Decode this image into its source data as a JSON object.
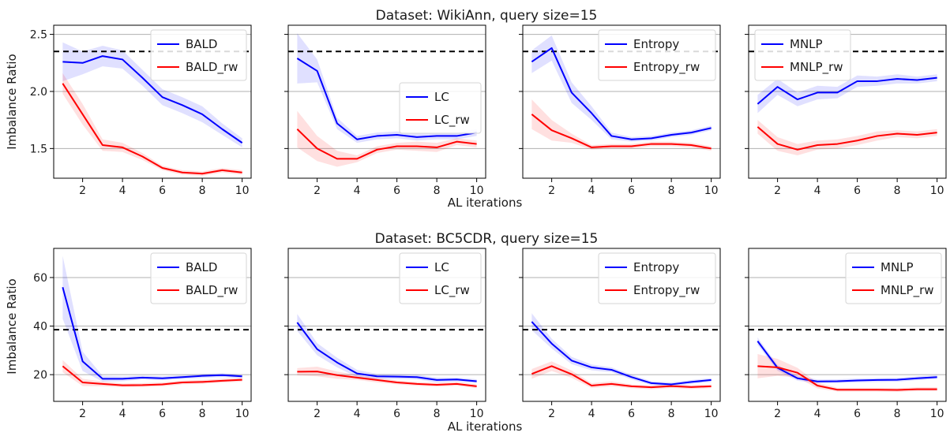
{
  "figure": {
    "row_titles": [
      "Dataset: WikiAnn, query size=15",
      "Dataset: BC5CDR, query size=15"
    ],
    "ylabel": "Imbalance Ratio",
    "xlabel": "AL iterations"
  },
  "colors": {
    "base": "#0000ff",
    "reweighted": "#ff0000",
    "reference": "#000000"
  },
  "chart_data": [
    {
      "type": "line",
      "dataset": "WikiAnn",
      "panel": "BALD",
      "x": [
        1,
        2,
        3,
        4,
        5,
        6,
        7,
        8,
        9,
        10
      ],
      "xticks": [
        2,
        4,
        6,
        8,
        10
      ],
      "xlim": [
        0.55,
        10.45
      ],
      "ylim": [
        1.24,
        2.58
      ],
      "yticks": [
        1.5,
        2.0,
        2.5
      ],
      "yticklabels": [
        "1.5",
        "2.0",
        "2.5"
      ],
      "reference_line": 2.35,
      "grid": "y",
      "legend_loc": "upper-right",
      "series": [
        {
          "name": "BALD",
          "values": [
            2.26,
            2.25,
            2.31,
            2.28,
            2.12,
            1.95,
            1.88,
            1.8,
            1.67,
            1.55
          ],
          "band": [
            0.17,
            0.1,
            0.09,
            0.08,
            0.07,
            0.07,
            0.07,
            0.07,
            0.05,
            0.04
          ]
        },
        {
          "name": "BALD_rw",
          "values": [
            2.07,
            1.8,
            1.53,
            1.51,
            1.43,
            1.33,
            1.29,
            1.28,
            1.31,
            1.29
          ],
          "band": [
            0.09,
            0.09,
            0.05,
            0.04,
            0.03,
            0.02,
            0.02,
            0.02,
            0.02,
            0.02
          ]
        }
      ]
    },
    {
      "type": "line",
      "dataset": "WikiAnn",
      "panel": "LC",
      "x": [
        1,
        2,
        3,
        4,
        5,
        6,
        7,
        8,
        9,
        10
      ],
      "xticks": [
        2,
        4,
        6,
        8,
        10
      ],
      "xlim": [
        0.55,
        10.45
      ],
      "ylim": [
        1.24,
        2.58
      ],
      "yticks": [
        1.5,
        2.0,
        2.5
      ],
      "yticklabels": [
        "",
        "",
        ""
      ],
      "reference_line": 2.35,
      "grid": "y",
      "legend_loc": "center-right",
      "series": [
        {
          "name": "LC",
          "values": [
            2.29,
            2.18,
            1.72,
            1.58,
            1.61,
            1.62,
            1.6,
            1.61,
            1.61,
            1.64
          ],
          "band": [
            0.22,
            0.1,
            0.05,
            0.03,
            0.03,
            0.03,
            0.03,
            0.03,
            0.03,
            0.03
          ]
        },
        {
          "name": "LC_rw",
          "values": [
            1.67,
            1.5,
            1.41,
            1.41,
            1.49,
            1.52,
            1.52,
            1.51,
            1.56,
            1.54
          ],
          "band": [
            0.16,
            0.11,
            0.07,
            0.03,
            0.03,
            0.03,
            0.04,
            0.04,
            0.03,
            0.03
          ]
        }
      ]
    },
    {
      "type": "line",
      "dataset": "WikiAnn",
      "panel": "Entropy",
      "x": [
        1,
        2,
        3,
        4,
        5,
        6,
        7,
        8,
        9,
        10
      ],
      "xticks": [
        2,
        4,
        6,
        8,
        10
      ],
      "xlim": [
        0.55,
        10.45
      ],
      "ylim": [
        1.24,
        2.58
      ],
      "yticks": [
        1.5,
        2.0,
        2.5
      ],
      "yticklabels": [
        "",
        "",
        ""
      ],
      "reference_line": 2.35,
      "grid": "y",
      "legend_loc": "upper-right",
      "series": [
        {
          "name": "Entropy",
          "values": [
            2.26,
            2.38,
            1.99,
            1.81,
            1.61,
            1.58,
            1.59,
            1.62,
            1.64,
            1.68
          ],
          "band": [
            0.1,
            0.11,
            0.09,
            0.06,
            0.03,
            0.02,
            0.02,
            0.02,
            0.02,
            0.02
          ]
        },
        {
          "name": "Entropy_rw",
          "values": [
            1.8,
            1.66,
            1.59,
            1.51,
            1.52,
            1.52,
            1.54,
            1.54,
            1.53,
            1.5
          ],
          "band": [
            0.13,
            0.09,
            0.04,
            0.02,
            0.02,
            0.02,
            0.02,
            0.02,
            0.02,
            0.02
          ]
        }
      ]
    },
    {
      "type": "line",
      "dataset": "WikiAnn",
      "panel": "MNLP",
      "x": [
        1,
        2,
        3,
        4,
        5,
        6,
        7,
        8,
        9,
        10
      ],
      "xticks": [
        2,
        4,
        6,
        8,
        10
      ],
      "xlim": [
        0.55,
        10.45
      ],
      "ylim": [
        1.24,
        2.58
      ],
      "yticks": [
        1.5,
        2.0,
        2.5
      ],
      "yticklabels": [
        "",
        "",
        ""
      ],
      "reference_line": 2.35,
      "grid": "y",
      "legend_loc": "upper-left",
      "series": [
        {
          "name": "MNLP",
          "values": [
            1.89,
            2.04,
            1.93,
            1.99,
            1.99,
            2.09,
            2.09,
            2.11,
            2.1,
            2.12
          ],
          "band": [
            0.08,
            0.07,
            0.06,
            0.06,
            0.05,
            0.05,
            0.04,
            0.04,
            0.03,
            0.03
          ]
        },
        {
          "name": "MNLP_rw",
          "values": [
            1.69,
            1.54,
            1.49,
            1.53,
            1.54,
            1.57,
            1.61,
            1.63,
            1.62,
            1.64
          ],
          "band": [
            0.06,
            0.06,
            0.05,
            0.04,
            0.04,
            0.04,
            0.04,
            0.03,
            0.03,
            0.03
          ]
        }
      ]
    },
    {
      "type": "line",
      "dataset": "BC5CDR",
      "panel": "BALD",
      "x": [
        1,
        2,
        3,
        4,
        5,
        6,
        7,
        8,
        9,
        10
      ],
      "xticks": [
        2,
        4,
        6,
        8,
        10
      ],
      "xlim": [
        0.55,
        10.45
      ],
      "ylim": [
        9,
        72
      ],
      "yticks": [
        20,
        40,
        60
      ],
      "yticklabels": [
        "20",
        "40",
        "60"
      ],
      "reference_line": 38.5,
      "grid": "y",
      "legend_loc": "upper-right",
      "series": [
        {
          "name": "BALD",
          "values": [
            56,
            25.5,
            18.3,
            18.3,
            18.8,
            18.5,
            19.0,
            19.5,
            19.8,
            19.3
          ],
          "band": [
            13,
            4,
            1.2,
            1.0,
            0.8,
            0.8,
            0.8,
            0.8,
            0.8,
            0.8
          ]
        },
        {
          "name": "BALD_rw",
          "values": [
            23.5,
            16.8,
            16.2,
            15.6,
            15.7,
            16.0,
            16.8,
            17.0,
            17.5,
            17.9
          ],
          "band": [
            2.5,
            1.5,
            1.0,
            0.8,
            0.8,
            0.8,
            0.8,
            0.8,
            0.8,
            0.8
          ]
        }
      ]
    },
    {
      "type": "line",
      "dataset": "BC5CDR",
      "panel": "LC",
      "x": [
        1,
        2,
        3,
        4,
        5,
        6,
        7,
        8,
        9,
        10
      ],
      "xticks": [
        2,
        4,
        6,
        8,
        10
      ],
      "xlim": [
        0.55,
        10.45
      ],
      "ylim": [
        9,
        72
      ],
      "yticks": [
        20,
        40,
        60
      ],
      "yticklabels": [
        "",
        "",
        ""
      ],
      "reference_line": 38.5,
      "grid": "y",
      "legend_loc": "upper-right",
      "series": [
        {
          "name": "LC",
          "values": [
            41.5,
            30.5,
            25.0,
            20.5,
            19.3,
            19.2,
            19.0,
            17.8,
            18.0,
            17.3
          ],
          "band": [
            3.5,
            2.5,
            2.0,
            1.5,
            1.0,
            1.0,
            1.0,
            1.0,
            0.8,
            0.8
          ]
        },
        {
          "name": "LC_rw",
          "values": [
            21.2,
            21.3,
            19.8,
            18.8,
            17.8,
            16.8,
            16.2,
            15.8,
            16.2,
            15.2
          ],
          "band": [
            1.5,
            2.0,
            1.5,
            1.0,
            1.0,
            0.8,
            0.8,
            0.8,
            0.8,
            0.8
          ]
        }
      ]
    },
    {
      "type": "line",
      "dataset": "BC5CDR",
      "panel": "Entropy",
      "x": [
        1,
        2,
        3,
        4,
        5,
        6,
        7,
        8,
        9,
        10
      ],
      "xticks": [
        2,
        4,
        6,
        8,
        10
      ],
      "xlim": [
        0.55,
        10.45
      ],
      "ylim": [
        9,
        72
      ],
      "yticks": [
        20,
        40,
        60
      ],
      "yticklabels": [
        "",
        "",
        ""
      ],
      "reference_line": 38.5,
      "grid": "y",
      "legend_loc": "upper-right",
      "series": [
        {
          "name": "Entropy",
          "values": [
            41.8,
            32.8,
            25.8,
            23.0,
            22.0,
            19.0,
            16.5,
            16.0,
            17.0,
            17.8
          ],
          "band": [
            3.5,
            2.0,
            1.5,
            1.2,
            1.0,
            1.0,
            0.8,
            0.8,
            0.8,
            0.8
          ]
        },
        {
          "name": "Entropy_rw",
          "values": [
            20.3,
            23.5,
            20.2,
            15.5,
            16.2,
            15.2,
            14.8,
            15.3,
            14.9,
            15.2
          ],
          "band": [
            2.0,
            2.0,
            1.5,
            1.0,
            1.0,
            0.8,
            0.8,
            0.8,
            0.8,
            0.8
          ]
        }
      ]
    },
    {
      "type": "line",
      "dataset": "BC5CDR",
      "panel": "MNLP",
      "x": [
        1,
        2,
        3,
        4,
        5,
        6,
        7,
        8,
        9,
        10
      ],
      "xticks": [
        2,
        4,
        6,
        8,
        10
      ],
      "xlim": [
        0.55,
        10.45
      ],
      "ylim": [
        9,
        72
      ],
      "yticks": [
        20,
        40,
        60
      ],
      "yticklabels": [
        "",
        "",
        ""
      ],
      "reference_line": 38.5,
      "grid": "y",
      "legend_loc": "upper-right",
      "series": [
        {
          "name": "MNLP",
          "values": [
            33.8,
            22.8,
            18.5,
            17.2,
            17.3,
            17.6,
            17.8,
            17.9,
            18.5,
            19.0
          ],
          "band": [
            1.5,
            1.2,
            1.0,
            0.8,
            0.8,
            0.8,
            0.8,
            0.8,
            0.8,
            0.8
          ]
        },
        {
          "name": "MNLP_rw",
          "values": [
            23.5,
            23.0,
            20.8,
            15.5,
            13.8,
            13.8,
            13.8,
            13.7,
            14.0,
            14.0
          ],
          "band": [
            5.0,
            3.5,
            2.0,
            1.2,
            0.8,
            0.8,
            0.8,
            0.8,
            0.8,
            0.8
          ]
        }
      ]
    }
  ]
}
